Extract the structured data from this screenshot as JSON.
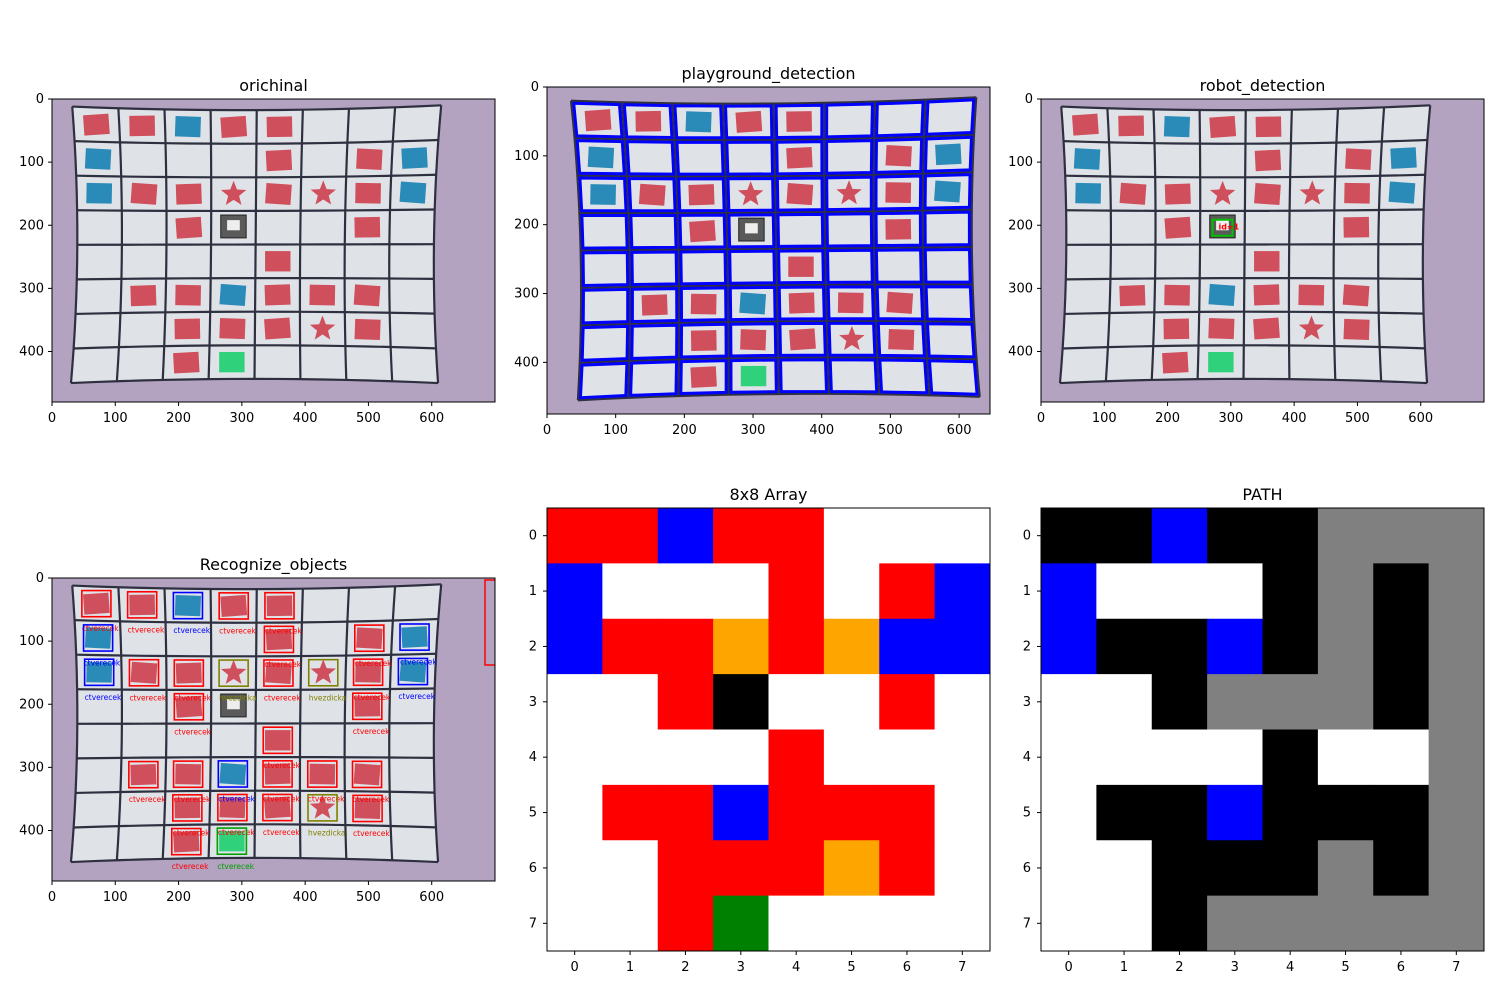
{
  "panels": [
    {
      "id": "orig",
      "title": "orichinal",
      "kind": "photo",
      "overlay": "none"
    },
    {
      "id": "pg",
      "title": "playground_detection",
      "kind": "photo",
      "overlay": "grid"
    },
    {
      "id": "robot",
      "title": "robot_detection",
      "kind": "photo",
      "overlay": "robot"
    },
    {
      "id": "recog",
      "title": "Recognize_objects",
      "kind": "photo",
      "overlay": "recognize"
    },
    {
      "id": "array",
      "title": "8x8 Array",
      "kind": "matrix",
      "matrix": "array"
    },
    {
      "id": "path",
      "title": "PATH",
      "kind": "matrix",
      "matrix": "path"
    }
  ],
  "photo_ticks_x_a": [
    "0",
    "100",
    "200",
    "300",
    "400",
    "500",
    "600"
  ],
  "photo_ticks_y_a": [
    "0",
    "100",
    "200",
    "300",
    "400"
  ],
  "photo_ticks_x_b": [
    "0",
    "100",
    "200",
    "300",
    "400",
    "500",
    "600"
  ],
  "photo_ticks_y_b": [
    "0",
    "100",
    "200",
    "300",
    "400"
  ],
  "matrix_ticks": [
    "0",
    "1",
    "2",
    "3",
    "4",
    "5",
    "6",
    "7"
  ],
  "robot_label": "id=1",
  "object_labels": {
    "square": "ctverecek",
    "star": "hvezdicka"
  },
  "colors": {
    "R": "#ff0000",
    "B": "#0000ff",
    "O": "#ffa500",
    "K": "#000000",
    "G": "#008000",
    "W": "#ffffff",
    "Y": "#808080",
    "board_bg": "#b3a2c0",
    "cell_fill": "#dfe3e8",
    "grid_line": "#2e3040",
    "detect_blue": "#0000ff",
    "red_obj": "#cf4f5c",
    "blue_obj": "#2a8ab8",
    "green_obj": "#2fd27a"
  },
  "chart_data": [
    {
      "type": "heatmap",
      "title": "8x8 Array",
      "rows": [
        "RRBRRWWW",
        "BWWWRWRB",
        "BRROROBB",
        "WWRKWWRW",
        "WWWWRWWW",
        "WRRBRRRW",
        "WWRRRORW",
        "WWRGWWWW"
      ],
      "x_ticks": [
        "0",
        "1",
        "2",
        "3",
        "4",
        "5",
        "6",
        "7"
      ],
      "y_ticks": [
        "0",
        "1",
        "2",
        "3",
        "4",
        "5",
        "6",
        "7"
      ]
    },
    {
      "type": "heatmap",
      "title": "PATH",
      "rows": [
        "KKBKKYYY",
        "BWWWKYKY",
        "BKKBKYKY",
        "WWKYYYKY",
        "WWWWKWWY",
        "WKKBKKKY",
        "WWKKKYKY",
        "WWKYYYYY"
      ],
      "x_ticks": [
        "0",
        "1",
        "2",
        "3",
        "4",
        "5",
        "6",
        "7"
      ],
      "y_ticks": [
        "0",
        "1",
        "2",
        "3",
        "4",
        "5",
        "6",
        "7"
      ]
    }
  ],
  "objects": [
    {
      "r": 0,
      "c": 0,
      "t": "R"
    },
    {
      "r": 0,
      "c": 1,
      "t": "R"
    },
    {
      "r": 0,
      "c": 2,
      "t": "B"
    },
    {
      "r": 0,
      "c": 3,
      "t": "R"
    },
    {
      "r": 0,
      "c": 4,
      "t": "R"
    },
    {
      "r": 1,
      "c": 0,
      "t": "B"
    },
    {
      "r": 1,
      "c": 4,
      "t": "R"
    },
    {
      "r": 1,
      "c": 6,
      "t": "R"
    },
    {
      "r": 1,
      "c": 7,
      "t": "B"
    },
    {
      "r": 2,
      "c": 0,
      "t": "B"
    },
    {
      "r": 2,
      "c": 1,
      "t": "R"
    },
    {
      "r": 2,
      "c": 2,
      "t": "R"
    },
    {
      "r": 2,
      "c": 3,
      "t": "S"
    },
    {
      "r": 2,
      "c": 4,
      "t": "R"
    },
    {
      "r": 2,
      "c": 5,
      "t": "S"
    },
    {
      "r": 2,
      "c": 6,
      "t": "R"
    },
    {
      "r": 2,
      "c": 7,
      "t": "B"
    },
    {
      "r": 3,
      "c": 2,
      "t": "R"
    },
    {
      "r": 3,
      "c": 3,
      "t": "K"
    },
    {
      "r": 3,
      "c": 6,
      "t": "R"
    },
    {
      "r": 4,
      "c": 4,
      "t": "R"
    },
    {
      "r": 5,
      "c": 1,
      "t": "R"
    },
    {
      "r": 5,
      "c": 2,
      "t": "R"
    },
    {
      "r": 5,
      "c": 3,
      "t": "B"
    },
    {
      "r": 5,
      "c": 4,
      "t": "R"
    },
    {
      "r": 5,
      "c": 5,
      "t": "R"
    },
    {
      "r": 5,
      "c": 6,
      "t": "R"
    },
    {
      "r": 6,
      "c": 2,
      "t": "R"
    },
    {
      "r": 6,
      "c": 3,
      "t": "R"
    },
    {
      "r": 6,
      "c": 4,
      "t": "R"
    },
    {
      "r": 6,
      "c": 5,
      "t": "S"
    },
    {
      "r": 6,
      "c": 6,
      "t": "R"
    },
    {
      "r": 7,
      "c": 2,
      "t": "R"
    },
    {
      "r": 7,
      "c": 3,
      "t": "G"
    }
  ]
}
